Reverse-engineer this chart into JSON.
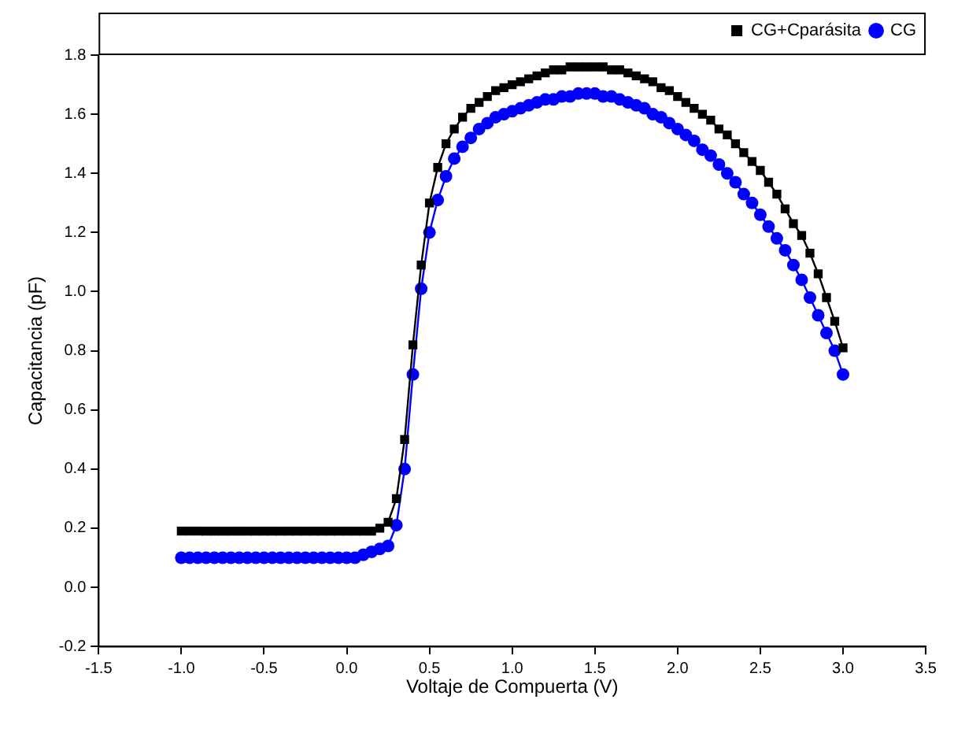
{
  "chart_data": {
    "type": "line",
    "xlabel": "Voltaje de Compuerta (V)",
    "ylabel": "Capacitancia (pF)",
    "x": [
      -1.0,
      -0.95,
      -0.9,
      -0.85,
      -0.8,
      -0.75,
      -0.7,
      -0.65,
      -0.6,
      -0.55,
      -0.5,
      -0.45,
      -0.4,
      -0.35,
      -0.3,
      -0.25,
      -0.2,
      -0.15,
      -0.1,
      -0.05,
      0.0,
      0.05,
      0.1,
      0.15,
      0.2,
      0.25,
      0.3,
      0.35,
      0.4,
      0.45,
      0.5,
      0.55,
      0.6,
      0.65,
      0.7,
      0.75,
      0.8,
      0.85,
      0.9,
      0.95,
      1.0,
      1.05,
      1.1,
      1.15,
      1.2,
      1.25,
      1.3,
      1.35,
      1.4,
      1.45,
      1.5,
      1.55,
      1.6,
      1.65,
      1.7,
      1.75,
      1.8,
      1.85,
      1.9,
      1.95,
      2.0,
      2.05,
      2.1,
      2.15,
      2.2,
      2.25,
      2.3,
      2.35,
      2.4,
      2.45,
      2.5,
      2.55,
      2.6,
      2.65,
      2.7,
      2.75,
      2.8,
      2.85,
      2.9,
      2.95,
      3.0
    ],
    "series": [
      {
        "name": "CG+Cparásita",
        "color": "#000000",
        "marker": "square",
        "values": [
          0.19,
          0.19,
          0.19,
          0.19,
          0.19,
          0.19,
          0.19,
          0.19,
          0.19,
          0.19,
          0.19,
          0.19,
          0.19,
          0.19,
          0.19,
          0.19,
          0.19,
          0.19,
          0.19,
          0.19,
          0.19,
          0.19,
          0.19,
          0.19,
          0.2,
          0.22,
          0.3,
          0.5,
          0.82,
          1.09,
          1.3,
          1.42,
          1.5,
          1.55,
          1.59,
          1.62,
          1.64,
          1.66,
          1.68,
          1.69,
          1.7,
          1.71,
          1.72,
          1.73,
          1.74,
          1.75,
          1.75,
          1.76,
          1.76,
          1.76,
          1.76,
          1.76,
          1.75,
          1.75,
          1.74,
          1.73,
          1.72,
          1.71,
          1.69,
          1.68,
          1.66,
          1.64,
          1.62,
          1.6,
          1.58,
          1.55,
          1.53,
          1.5,
          1.47,
          1.44,
          1.41,
          1.37,
          1.33,
          1.28,
          1.23,
          1.19,
          1.13,
          1.06,
          0.98,
          0.9,
          0.81
        ]
      },
      {
        "name": "CG",
        "color": "#0000ff",
        "marker": "circle",
        "values": [
          0.1,
          0.1,
          0.1,
          0.1,
          0.1,
          0.1,
          0.1,
          0.1,
          0.1,
          0.1,
          0.1,
          0.1,
          0.1,
          0.1,
          0.1,
          0.1,
          0.1,
          0.1,
          0.1,
          0.1,
          0.1,
          0.1,
          0.11,
          0.12,
          0.13,
          0.14,
          0.21,
          0.4,
          0.72,
          1.01,
          1.2,
          1.31,
          1.39,
          1.45,
          1.49,
          1.52,
          1.55,
          1.57,
          1.59,
          1.6,
          1.61,
          1.62,
          1.63,
          1.64,
          1.65,
          1.65,
          1.66,
          1.66,
          1.67,
          1.67,
          1.67,
          1.66,
          1.66,
          1.65,
          1.64,
          1.63,
          1.62,
          1.6,
          1.59,
          1.57,
          1.55,
          1.53,
          1.51,
          1.48,
          1.46,
          1.43,
          1.4,
          1.37,
          1.33,
          1.3,
          1.26,
          1.22,
          1.18,
          1.14,
          1.09,
          1.04,
          0.98,
          0.92,
          0.86,
          0.8,
          0.72
        ]
      }
    ],
    "xlim": [
      -1.5,
      3.5
    ],
    "xticks": [
      {
        "value": -1.5,
        "label": "-1.5"
      },
      {
        "value": -1,
        "label": "-1.0"
      },
      {
        "value": -0.5,
        "label": "-0.5"
      },
      {
        "value": 0,
        "label": "0.0"
      },
      {
        "value": 0.5,
        "label": "0.5"
      },
      {
        "value": 1,
        "label": "1.0"
      },
      {
        "value": 1.5,
        "label": "1.5"
      },
      {
        "value": 2,
        "label": "2.0"
      },
      {
        "value": 2.5,
        "label": "2.5"
      },
      {
        "value": 3,
        "label": "3.0"
      },
      {
        "value": 3.5,
        "label": "3.5"
      }
    ],
    "ylim": [
      -0.2,
      1.8
    ],
    "yticks": [
      {
        "value": -0.2,
        "label": "-0.2"
      },
      {
        "value": 0,
        "label": "0.0"
      },
      {
        "value": 0.2,
        "label": "0.2"
      },
      {
        "value": 0.4,
        "label": "0.4"
      },
      {
        "value": 0.6,
        "label": "0.6"
      },
      {
        "value": 0.8,
        "label": "0.8"
      },
      {
        "value": 1,
        "label": "1.0"
      },
      {
        "value": 1.2,
        "label": "1.2"
      },
      {
        "value": 1.4,
        "label": "1.4"
      },
      {
        "value": 1.6,
        "label": "1.6"
      },
      {
        "value": 1.8,
        "label": "1.8"
      }
    ],
    "grid": false,
    "legend": "top right",
    "line_style": "solid"
  }
}
